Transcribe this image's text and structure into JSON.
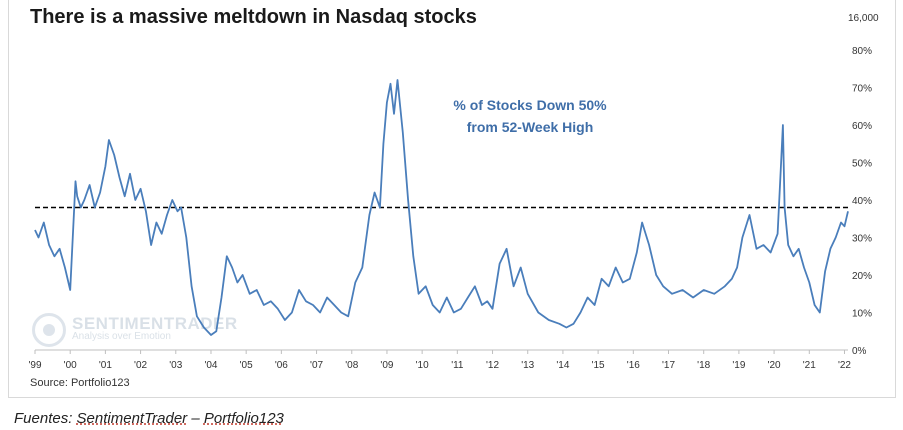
{
  "chart_data": {
    "type": "line",
    "title": "There is a massive meltdown in Nasdaq stocks",
    "annotation": [
      "% of Stocks Down 50%",
      "from 52-Week High"
    ],
    "series_name": "% of Stocks Down 50% from 52-Week High",
    "top_right_label": "16,000",
    "source": "Source: Portfolio123",
    "xlim": [
      1999.0,
      2022.1
    ],
    "ylim": [
      0,
      80
    ],
    "y_ticks": [
      0,
      10,
      20,
      30,
      40,
      50,
      60,
      70,
      80
    ],
    "y_tick_labels": [
      "0%",
      "10%",
      "20%",
      "30%",
      "40%",
      "50%",
      "60%",
      "70%",
      "80%"
    ],
    "x_ticks": [
      1999,
      2000,
      2001,
      2002,
      2003,
      2004,
      2005,
      2006,
      2007,
      2008,
      2009,
      2010,
      2011,
      2012,
      2013,
      2014,
      2015,
      2016,
      2017,
      2018,
      2019,
      2020,
      2021,
      2022
    ],
    "x_tick_labels": [
      "'99",
      "'00",
      "'01",
      "'02",
      "'03",
      "'04",
      "'05",
      "'06",
      "'07",
      "'08",
      "'09",
      "'10",
      "'11",
      "'12",
      "'13",
      "'14",
      "'15",
      "'16",
      "'17",
      "'18",
      "'19",
      "'20",
      "'21",
      "'22"
    ],
    "reference_line": 38,
    "line_color": "#4a7ebb",
    "x": [
      1999.0,
      1999.1,
      1999.25,
      1999.4,
      1999.55,
      1999.7,
      1999.85,
      2000.0,
      2000.15,
      2000.2,
      2000.3,
      2000.4,
      2000.55,
      2000.7,
      2000.85,
      2001.0,
      2001.1,
      2001.25,
      2001.4,
      2001.55,
      2001.7,
      2001.85,
      2002.0,
      2002.15,
      2002.3,
      2002.45,
      2002.6,
      2002.75,
      2002.9,
      2003.05,
      2003.15,
      2003.3,
      2003.45,
      2003.6,
      2003.8,
      2004.0,
      2004.15,
      2004.3,
      2004.45,
      2004.6,
      2004.75,
      2004.9,
      2005.1,
      2005.3,
      2005.5,
      2005.7,
      2005.9,
      2006.1,
      2006.3,
      2006.5,
      2006.7,
      2006.9,
      2007.1,
      2007.3,
      2007.5,
      2007.7,
      2007.9,
      2008.1,
      2008.3,
      2008.5,
      2008.65,
      2008.8,
      2008.9,
      2009.0,
      2009.1,
      2009.2,
      2009.3,
      2009.45,
      2009.6,
      2009.75,
      2009.9,
      2010.1,
      2010.3,
      2010.5,
      2010.7,
      2010.9,
      2011.1,
      2011.3,
      2011.5,
      2011.7,
      2011.85,
      2012.0,
      2012.2,
      2012.4,
      2012.6,
      2012.8,
      2013.0,
      2013.3,
      2013.6,
      2013.9,
      2014.1,
      2014.3,
      2014.5,
      2014.7,
      2014.9,
      2015.1,
      2015.3,
      2015.5,
      2015.7,
      2015.9,
      2016.1,
      2016.25,
      2016.45,
      2016.65,
      2016.85,
      2017.1,
      2017.4,
      2017.7,
      2018.0,
      2018.3,
      2018.6,
      2018.8,
      2018.95,
      2019.1,
      2019.3,
      2019.5,
      2019.7,
      2019.9,
      2020.1,
      2020.2,
      2020.25,
      2020.3,
      2020.4,
      2020.55,
      2020.7,
      2020.85,
      2021.0,
      2021.15,
      2021.3,
      2021.45,
      2021.6,
      2021.75,
      2021.9,
      2022.0,
      2022.1
    ],
    "values": [
      32,
      30,
      34,
      28,
      25,
      27,
      22,
      16,
      45,
      41,
      38,
      40,
      44,
      38,
      42,
      49,
      56,
      52,
      46,
      41,
      47,
      40,
      43,
      37,
      28,
      34,
      31,
      36,
      40,
      37,
      38,
      30,
      17,
      9,
      6,
      4,
      5,
      14,
      25,
      22,
      18,
      20,
      15,
      16,
      12,
      13,
      11,
      8,
      10,
      16,
      13,
      12,
      10,
      14,
      12,
      10,
      9,
      18,
      22,
      36,
      42,
      38,
      55,
      66,
      71,
      63,
      72,
      58,
      40,
      25,
      15,
      17,
      12,
      10,
      14,
      10,
      11,
      14,
      17,
      12,
      13,
      11,
      23,
      27,
      17,
      22,
      15,
      10,
      8,
      7,
      6,
      7,
      10,
      14,
      12,
      19,
      17,
      22,
      18,
      19,
      26,
      34,
      28,
      20,
      17,
      15,
      16,
      14,
      16,
      15,
      17,
      19,
      22,
      30,
      36,
      27,
      28,
      26,
      31,
      50,
      60,
      38,
      28,
      25,
      27,
      22,
      18,
      12,
      10,
      21,
      27,
      30,
      34,
      33,
      37
    ]
  }
}
